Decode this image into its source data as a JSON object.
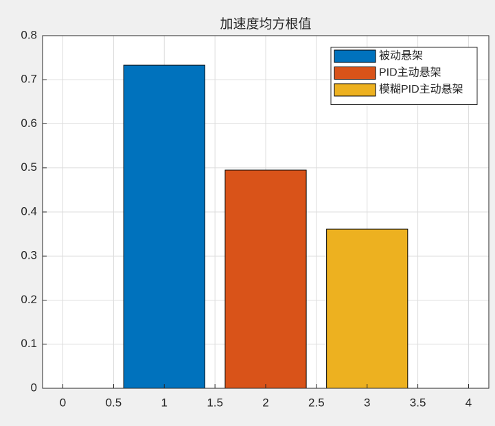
{
  "chart_data": {
    "type": "bar",
    "title": "加速度均方根值",
    "series": [
      {
        "name": "被动悬架",
        "color": "#0072bd",
        "x": [
          1
        ],
        "values": [
          0.733
        ]
      },
      {
        "name": "PID主动悬架",
        "color": "#d95319",
        "x": [
          2
        ],
        "values": [
          0.495
        ]
      },
      {
        "name": "模糊PID主动悬架",
        "color": "#edb120",
        "x": [
          3
        ],
        "values": [
          0.361
        ]
      }
    ],
    "xlim": [
      -0.2,
      4.2
    ],
    "xticks": [
      0,
      0.5,
      1,
      1.5,
      2,
      2.5,
      3,
      3.5,
      4
    ],
    "ylim": [
      0,
      0.8
    ],
    "yticks": [
      0,
      0.1,
      0.2,
      0.3,
      0.4,
      0.5,
      0.6,
      0.7,
      0.8
    ],
    "grid": true,
    "legend": "northeast"
  }
}
